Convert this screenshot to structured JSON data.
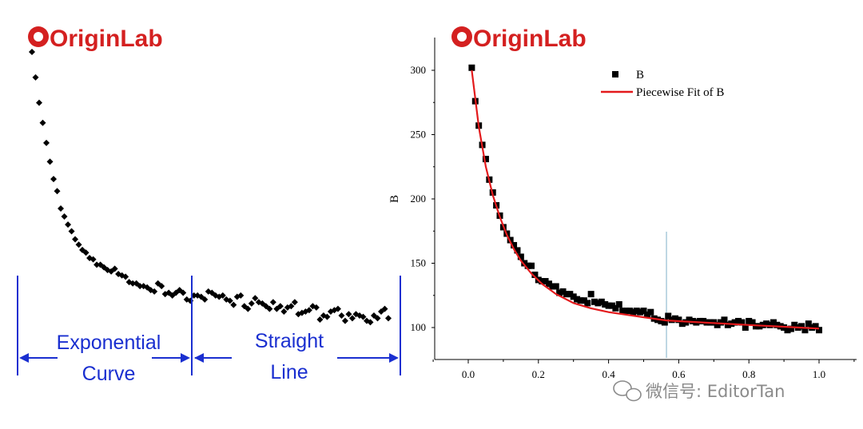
{
  "brand": {
    "logo_text": "OriginLab"
  },
  "colors": {
    "logo_red": "#d42020",
    "logo_dark": "#2b2b2b",
    "annotation_blue": "#1a2fd0",
    "fit_line": "#e31a1c",
    "marker": "#000000",
    "breakpoint_line": "#7fb0c8",
    "watermark": "#8a8a8a"
  },
  "left_panel": {
    "annotations": {
      "exponential_line1": "Exponential",
      "exponential_line2": "Curve",
      "straight_line1": "Straight",
      "straight_line2": "Line"
    }
  },
  "watermark": {
    "text": "微信号: EditorTan"
  },
  "chart_data": [
    {
      "type": "scatter",
      "title": "",
      "axes_shown": false,
      "x": [
        0.01,
        0.02,
        0.03,
        0.04,
        0.05,
        0.06,
        0.07,
        0.08,
        0.09,
        0.1,
        0.11,
        0.12,
        0.13,
        0.14,
        0.15,
        0.16,
        0.17,
        0.18,
        0.19,
        0.2,
        0.21,
        0.22,
        0.23,
        0.24,
        0.25,
        0.26,
        0.27,
        0.28,
        0.29,
        0.3,
        0.31,
        0.32,
        0.33,
        0.34,
        0.35,
        0.36,
        0.37,
        0.38,
        0.39,
        0.4,
        0.41,
        0.42,
        0.43,
        0.44,
        0.45,
        0.46,
        0.47,
        0.48,
        0.49,
        0.5,
        0.51,
        0.52,
        0.53,
        0.54,
        0.55,
        0.56,
        0.57,
        0.58,
        0.59,
        0.6,
        0.61,
        0.62,
        0.63,
        0.64,
        0.65,
        0.66,
        0.67,
        0.68,
        0.69,
        0.7,
        0.71,
        0.72,
        0.73,
        0.74,
        0.75,
        0.76,
        0.77,
        0.78,
        0.79,
        0.8,
        0.81,
        0.82,
        0.83,
        0.84,
        0.85,
        0.86,
        0.87,
        0.88,
        0.89,
        0.9,
        0.91,
        0.92,
        0.93,
        0.94,
        0.95,
        0.96,
        0.97,
        0.98,
        0.99,
        1.0
      ],
      "y": [
        300,
        281,
        262,
        247,
        232,
        218,
        205,
        196,
        183,
        177,
        171,
        166,
        160,
        156,
        152,
        150,
        146,
        145,
        141,
        141,
        139,
        137,
        136,
        138,
        134,
        133,
        132,
        128,
        127,
        127,
        125,
        125,
        124,
        122,
        121,
        127,
        125,
        119,
        120,
        118,
        120,
        122,
        120,
        115,
        114,
        118,
        118,
        117,
        115,
        121,
        120,
        118,
        117,
        118,
        115,
        114,
        111,
        117,
        118,
        110,
        108,
        112,
        116,
        113,
        112,
        110,
        108,
        113,
        108,
        110,
        106,
        109,
        110,
        113,
        104,
        105,
        106,
        107,
        110,
        109,
        100,
        103,
        102,
        106,
        107,
        108,
        103,
        99,
        104,
        101,
        104,
        103,
        102,
        99,
        98,
        103,
        101,
        106,
        108,
        101
      ],
      "breakpoint": 0.52,
      "segments": [
        {
          "label": "Exponential Curve",
          "x_range": [
            0,
            0.52
          ]
        },
        {
          "label": "Straight Line",
          "x_range": [
            0.52,
            1.0
          ]
        }
      ]
    },
    {
      "type": "scatter",
      "title": "",
      "xlabel": "",
      "ylabel": "B",
      "xlim": [
        -0.1,
        1.1
      ],
      "ylim": [
        80,
        320
      ],
      "xticks": [
        "0.0",
        "0.2",
        "0.4",
        "0.6",
        "0.8",
        "1.0"
      ],
      "yticks": [
        "100",
        "150",
        "200",
        "250",
        "300"
      ],
      "breakpoint_x": 0.565,
      "legend_position": "top-center",
      "series": [
        {
          "name": "B",
          "style": "markers",
          "x": [
            0.01,
            0.02,
            0.03,
            0.04,
            0.05,
            0.06,
            0.07,
            0.08,
            0.09,
            0.1,
            0.11,
            0.12,
            0.13,
            0.14,
            0.15,
            0.16,
            0.17,
            0.18,
            0.19,
            0.2,
            0.21,
            0.22,
            0.23,
            0.24,
            0.25,
            0.26,
            0.27,
            0.28,
            0.29,
            0.3,
            0.31,
            0.32,
            0.33,
            0.34,
            0.35,
            0.36,
            0.37,
            0.38,
            0.39,
            0.4,
            0.41,
            0.42,
            0.43,
            0.44,
            0.45,
            0.46,
            0.47,
            0.48,
            0.49,
            0.5,
            0.51,
            0.52,
            0.53,
            0.54,
            0.55,
            0.56,
            0.57,
            0.58,
            0.59,
            0.6,
            0.61,
            0.62,
            0.63,
            0.64,
            0.65,
            0.66,
            0.67,
            0.68,
            0.69,
            0.7,
            0.71,
            0.72,
            0.73,
            0.74,
            0.75,
            0.76,
            0.77,
            0.78,
            0.79,
            0.8,
            0.81,
            0.82,
            0.83,
            0.84,
            0.85,
            0.86,
            0.87,
            0.88,
            0.89,
            0.9,
            0.91,
            0.92,
            0.93,
            0.94,
            0.95,
            0.96,
            0.97,
            0.98,
            0.99,
            1.0
          ],
          "y": [
            302,
            276,
            257,
            242,
            231,
            215,
            205,
            195,
            187,
            178,
            173,
            168,
            164,
            160,
            155,
            150,
            148,
            148,
            141,
            137,
            136,
            136,
            134,
            132,
            132,
            127,
            128,
            126,
            126,
            124,
            122,
            121,
            121,
            119,
            126,
            120,
            119,
            120,
            118,
            117,
            117,
            115,
            118,
            113,
            113,
            113,
            112,
            113,
            112,
            113,
            110,
            112,
            107,
            106,
            105,
            104,
            109,
            106,
            107,
            106,
            103,
            104,
            106,
            105,
            104,
            105,
            105,
            104,
            104,
            104,
            102,
            104,
            106,
            102,
            103,
            104,
            105,
            104,
            100,
            105,
            104,
            101,
            101,
            102,
            103,
            102,
            104,
            102,
            101,
            100,
            98,
            99,
            102,
            100,
            101,
            98,
            103,
            100,
            101,
            98
          ]
        },
        {
          "name": "Piecewise Fit of B",
          "style": "line",
          "x": [
            0.01,
            0.03,
            0.05,
            0.07,
            0.09,
            0.11,
            0.13,
            0.15,
            0.18,
            0.21,
            0.25,
            0.3,
            0.35,
            0.4,
            0.45,
            0.5,
            0.565,
            0.6,
            0.7,
            0.8,
            0.9,
            1.0
          ],
          "y": [
            300,
            256,
            225,
            203,
            186,
            172,
            161,
            152,
            142,
            134,
            126,
            119,
            115,
            112,
            110,
            108,
            105.5,
            105.0,
            103.5,
            102.0,
            100.6,
            99.2
          ]
        }
      ]
    }
  ]
}
